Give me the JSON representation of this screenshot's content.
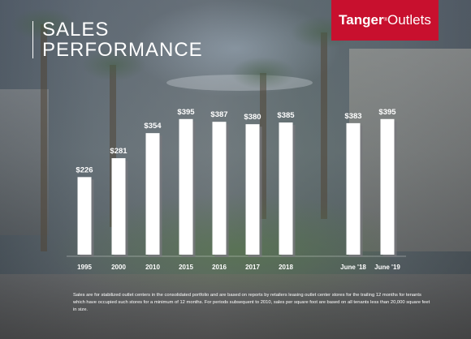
{
  "header": {
    "title_line1": "SALES",
    "title_line2": "PERFORMANCE"
  },
  "logo": {
    "bold_text": "Tanger",
    "registered_mark": "®",
    "text": "Outlets",
    "color": "#c8102e"
  },
  "chart_data": {
    "type": "bar",
    "categories": [
      "1995",
      "2000",
      "2010",
      "2015",
      "2016",
      "2017",
      "2018",
      "June '18",
      "June '19"
    ],
    "values": [
      226,
      281,
      354,
      395,
      387,
      380,
      385,
      383,
      395
    ],
    "value_labels": [
      "$226",
      "$281",
      "$354",
      "$395",
      "$387",
      "$380",
      "$385",
      "$383",
      "$395"
    ],
    "title": "",
    "xlabel": "",
    "ylabel": "",
    "ylim": [
      0,
      400
    ],
    "grid": false,
    "bar_color": "#ffffff",
    "label_color": "#ffffff"
  },
  "footnote": "Sales are for stabilized outlet centers in the consolidated portfolio and are based on reports by retailers leasing outlet center stores for the trailing 12 months for tenants which have occupied such stores for a minimum of 12 months. For periods subsequent to 2010, sales per square foot are based on all tenants less than 20,000 square feet in size."
}
